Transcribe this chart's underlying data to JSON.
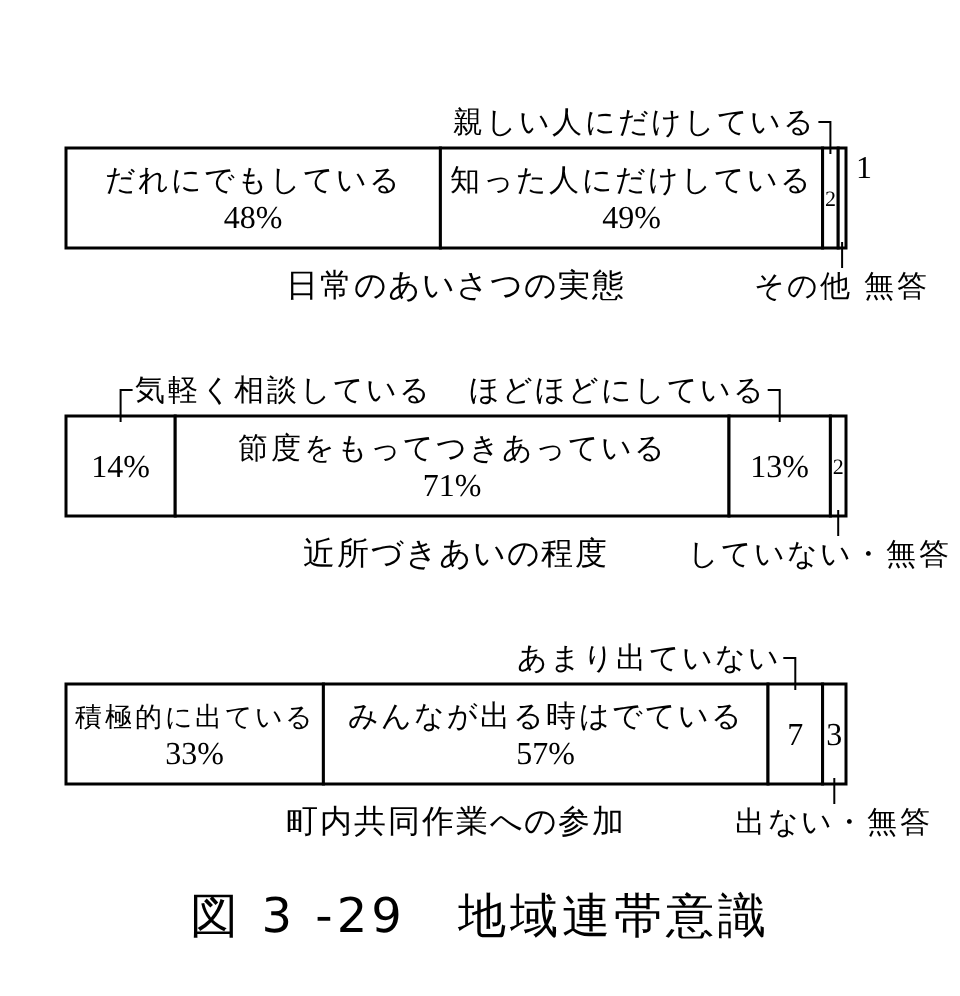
{
  "chart_data": [
    {
      "type": "bar",
      "orientation": "horizontal",
      "stacked": true,
      "title": "日常のあいさつの実態",
      "categories": [
        null
      ],
      "xlim": [
        0,
        100
      ],
      "tick_labels": false,
      "series": [
        {
          "name": "だれにでもしている",
          "color": "#ffffff",
          "values": [
            48
          ],
          "value_labels": [
            "48%"
          ]
        },
        {
          "name": "知った人にだけしている",
          "color": "#ffffff",
          "values": [
            49
          ],
          "value_labels": [
            "49%"
          ]
        },
        {
          "name": "親しい人にだけしている",
          "color": "#ffffff",
          "values": [
            2
          ],
          "value_labels": [
            "2"
          ]
        },
        {
          "name": "その他 無答",
          "color": "#ffffff",
          "values": [
            1
          ],
          "value_labels": [
            "1"
          ]
        }
      ]
    },
    {
      "type": "bar",
      "orientation": "horizontal",
      "stacked": true,
      "title": "近所づきあいの程度",
      "categories": [
        null
      ],
      "xlim": [
        0,
        100
      ],
      "tick_labels": false,
      "series": [
        {
          "name": "気軽く相談している",
          "color": "#ffffff",
          "values": [
            14
          ],
          "value_labels": [
            "14%"
          ]
        },
        {
          "name": "節度をもってつきあっている",
          "color": "#ffffff",
          "values": [
            71
          ],
          "value_labels": [
            "71%"
          ]
        },
        {
          "name": "ほどほどにしている",
          "color": "#ffffff",
          "values": [
            13
          ],
          "value_labels": [
            "13%"
          ]
        },
        {
          "name": "していない・無答",
          "color": "#ffffff",
          "values": [
            2
          ],
          "value_labels": [
            "2"
          ]
        }
      ]
    },
    {
      "type": "bar",
      "orientation": "horizontal",
      "stacked": true,
      "title": "町内共同作業への参加",
      "categories": [
        null
      ],
      "xlim": [
        0,
        100
      ],
      "tick_labels": false,
      "series": [
        {
          "name": "積極的に出ている",
          "color": "#ffffff",
          "values": [
            33
          ],
          "value_labels": [
            "33%"
          ]
        },
        {
          "name": "みんなが出る時はでている",
          "color": "#ffffff",
          "values": [
            57
          ],
          "value_labels": [
            "57%"
          ]
        },
        {
          "name": "あまり出ていない",
          "color": "#ffffff",
          "values": [
            7
          ],
          "value_labels": [
            "7"
          ]
        },
        {
          "name": "出ない・無答",
          "color": "#ffffff",
          "values": [
            3
          ],
          "value_labels": [
            "3"
          ]
        }
      ],
      "annotations": [
        "図 3 -29　地域連帯意識"
      ]
    }
  ]
}
